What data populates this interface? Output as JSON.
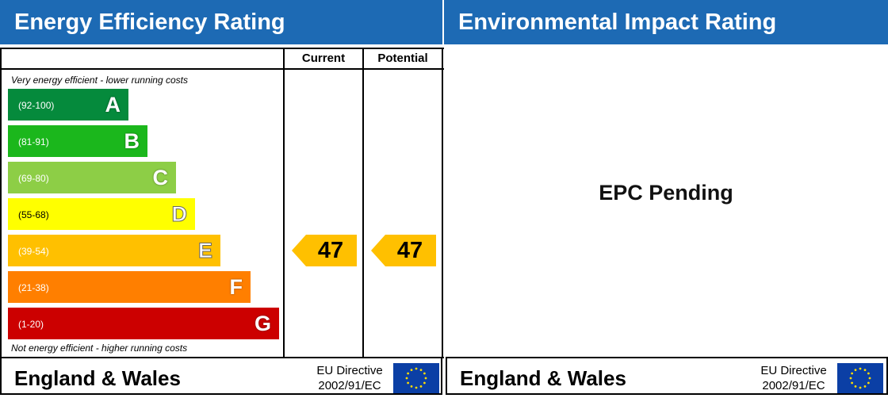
{
  "energy_panel": {
    "title": "Energy Efficiency Rating",
    "col_current": "Current",
    "col_potential": "Potential",
    "top_note": "Very energy efficient - lower running costs",
    "bottom_note": "Not energy efficient - higher running costs",
    "current_value": "47",
    "potential_value": "47",
    "arrow_color": "#ffc000"
  },
  "environment_panel": {
    "title": "Environmental Impact Rating",
    "status": "EPC Pending"
  },
  "footer": {
    "country": "England & Wales",
    "directive_line1": "EU Directive",
    "directive_line2": "2002/91/EC"
  },
  "chart_data": {
    "type": "bar",
    "categories": [
      "A",
      "B",
      "C",
      "D",
      "E",
      "F",
      "G"
    ],
    "ranges": [
      "(92-100)",
      "(81-91)",
      "(69-80)",
      "(55-68)",
      "(39-54)",
      "(21-38)",
      "(1-20)"
    ],
    "colors": [
      "#058a3c",
      "#1bb71c",
      "#8dce46",
      "#ffff00",
      "#ffc000",
      "#ff7f00",
      "#cc0000"
    ],
    "current": 47,
    "potential": 47,
    "current_band": "E",
    "potential_band": "E"
  }
}
